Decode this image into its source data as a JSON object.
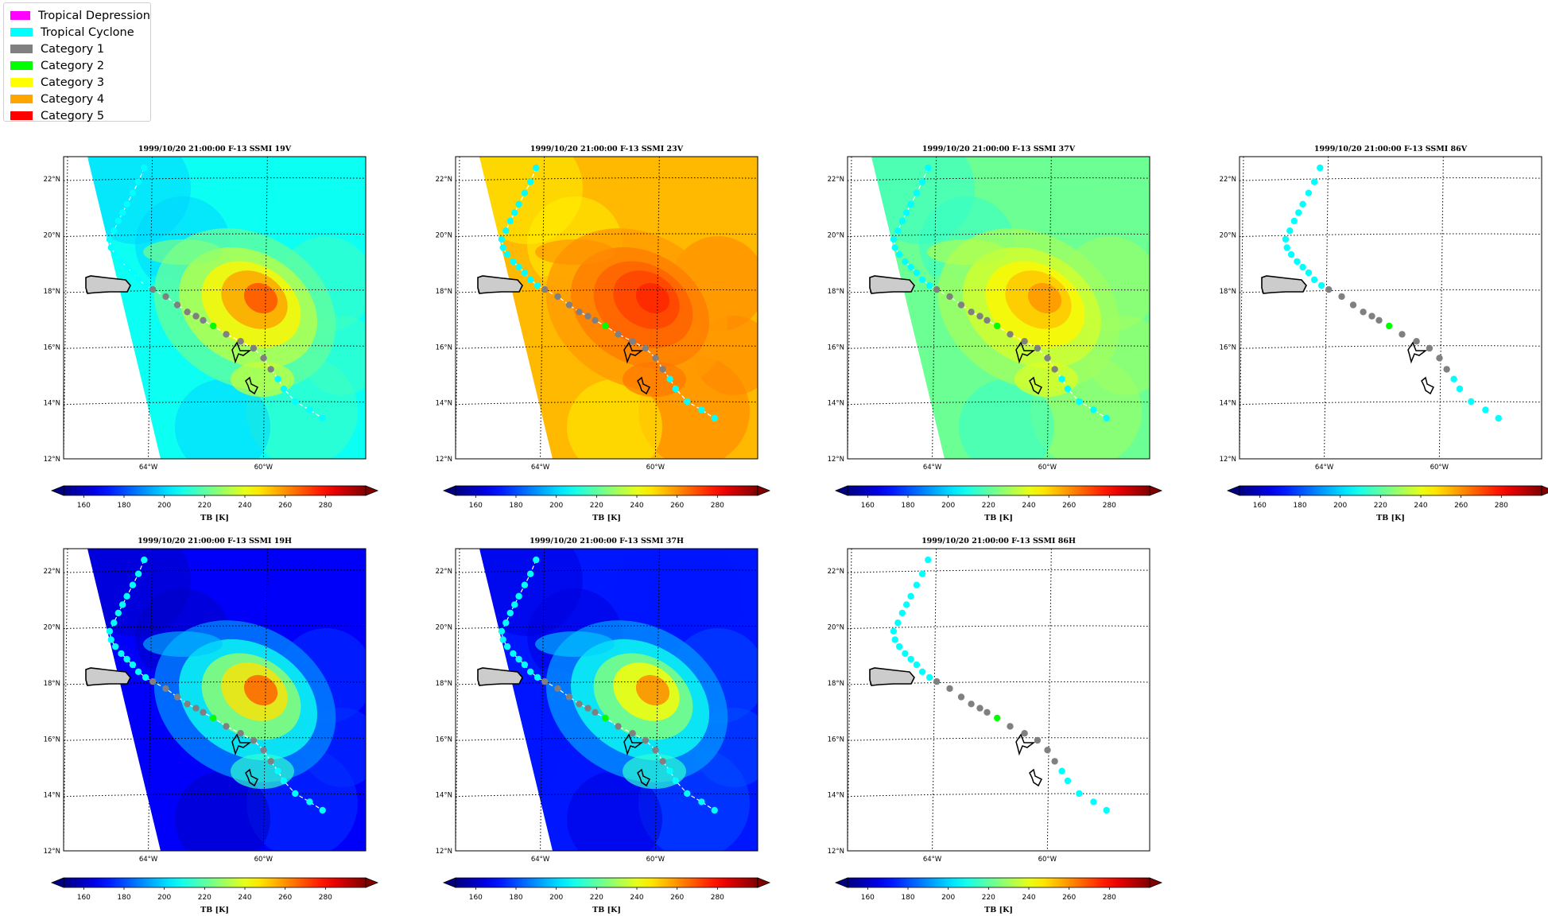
{
  "legend": [
    {
      "label": "Tropical Depression",
      "color": "#ff00ff"
    },
    {
      "label": "Tropical Cyclone",
      "color": "#00ffff"
    },
    {
      "label": "Category 1",
      "color": "#808080"
    },
    {
      "label": "Category 2",
      "color": "#00ff00"
    },
    {
      "label": "Category 3",
      "color": "#ffff00"
    },
    {
      "label": "Category 4",
      "color": "#ffa500"
    },
    {
      "label": "Category 5",
      "color": "#ff0000"
    }
  ],
  "map": {
    "lat_labels": [
      "22°N",
      "20°N",
      "18°N",
      "16°N",
      "14°N",
      "12°N"
    ],
    "lon_labels": [
      "64°W",
      "60°W"
    ],
    "colorbar_ticks": [
      "160",
      "180",
      "200",
      "220",
      "240",
      "260",
      "280"
    ],
    "colorbar_label": "TB [K]"
  },
  "panels": [
    {
      "title": "1999/10/20 21:00:00  F-13 SSMI 19V",
      "channel": "19V",
      "data": true,
      "base_tb": 208,
      "storm_peak": 62
    },
    {
      "title": "1999/10/20 21:00:00  F-13 SSMI 23V",
      "channel": "23V",
      "data": true,
      "base_tb": 254,
      "storm_peak": 22
    },
    {
      "title": "1999/10/20 21:00:00  F-13 SSMI 37V",
      "channel": "37V",
      "data": true,
      "base_tb": 222,
      "storm_peak": 38
    },
    {
      "title": "1999/10/20 21:00:00  F-13 SSMI 86V",
      "channel": "86V",
      "data": false
    },
    {
      "title": "1999/10/20 21:00:00  F-13 SSMI 19H",
      "channel": "19H",
      "data": true,
      "base_tb": 168,
      "storm_peak": 100
    },
    {
      "title": "1999/10/20 21:00:00  F-13 SSMI 37H",
      "channel": "37H",
      "data": true,
      "base_tb": 172,
      "storm_peak": 90
    },
    {
      "title": "1999/10/20 21:00:00  F-13 SSMI 86H",
      "channel": "86H",
      "data": false
    }
  ],
  "track": [
    {
      "lon": -64.2,
      "lat": 22.4,
      "category": "Tropical Cyclone"
    },
    {
      "lon": -64.4,
      "lat": 21.9,
      "category": "Tropical Cyclone"
    },
    {
      "lon": -64.6,
      "lat": 21.5,
      "category": "Tropical Cyclone"
    },
    {
      "lon": -64.8,
      "lat": 21.1,
      "category": "Tropical Cyclone"
    },
    {
      "lon": -64.95,
      "lat": 20.8,
      "category": "Tropical Cyclone"
    },
    {
      "lon": -65.1,
      "lat": 20.5,
      "category": "Tropical Cyclone"
    },
    {
      "lon": -65.25,
      "lat": 20.15,
      "category": "Tropical Cyclone"
    },
    {
      "lon": -65.4,
      "lat": 19.85,
      "category": "Tropical Cyclone"
    },
    {
      "lon": -65.35,
      "lat": 19.55,
      "category": "Tropical Cyclone"
    },
    {
      "lon": -65.2,
      "lat": 19.3,
      "category": "Tropical Cyclone"
    },
    {
      "lon": -65.0,
      "lat": 19.05,
      "category": "Tropical Cyclone"
    },
    {
      "lon": -64.8,
      "lat": 18.85,
      "category": "Tropical Cyclone"
    },
    {
      "lon": -64.6,
      "lat": 18.65,
      "category": "Tropical Cyclone"
    },
    {
      "lon": -64.4,
      "lat": 18.4,
      "category": "Tropical Cyclone"
    },
    {
      "lon": -64.15,
      "lat": 18.2,
      "category": "Tropical Cyclone"
    },
    {
      "lon": -63.9,
      "lat": 18.05,
      "category": "Category 1"
    },
    {
      "lon": -63.45,
      "lat": 17.8,
      "category": "Category 1"
    },
    {
      "lon": -63.05,
      "lat": 17.5,
      "category": "Category 1"
    },
    {
      "lon": -62.7,
      "lat": 17.25,
      "category": "Category 1"
    },
    {
      "lon": -62.4,
      "lat": 17.1,
      "category": "Category 1"
    },
    {
      "lon": -62.15,
      "lat": 16.95,
      "category": "Category 1"
    },
    {
      "lon": -61.8,
      "lat": 16.75,
      "category": "Category 2"
    },
    {
      "lon": -61.35,
      "lat": 16.45,
      "category": "Category 1"
    },
    {
      "lon": -60.85,
      "lat": 16.2,
      "category": "Category 1"
    },
    {
      "lon": -60.4,
      "lat": 15.95,
      "category": "Category 1"
    },
    {
      "lon": -60.05,
      "lat": 15.6,
      "category": "Category 1"
    },
    {
      "lon": -59.8,
      "lat": 15.2,
      "category": "Category 1"
    },
    {
      "lon": -59.55,
      "lat": 14.85,
      "category": "Tropical Cyclone"
    },
    {
      "lon": -59.35,
      "lat": 14.5,
      "category": "Tropical Cyclone"
    },
    {
      "lon": -58.95,
      "lat": 14.05,
      "category": "Tropical Cyclone"
    },
    {
      "lon": -58.45,
      "lat": 13.75,
      "category": "Tropical Cyclone"
    },
    {
      "lon": -58.0,
      "lat": 13.45,
      "category": "Tropical Cyclone"
    }
  ]
}
